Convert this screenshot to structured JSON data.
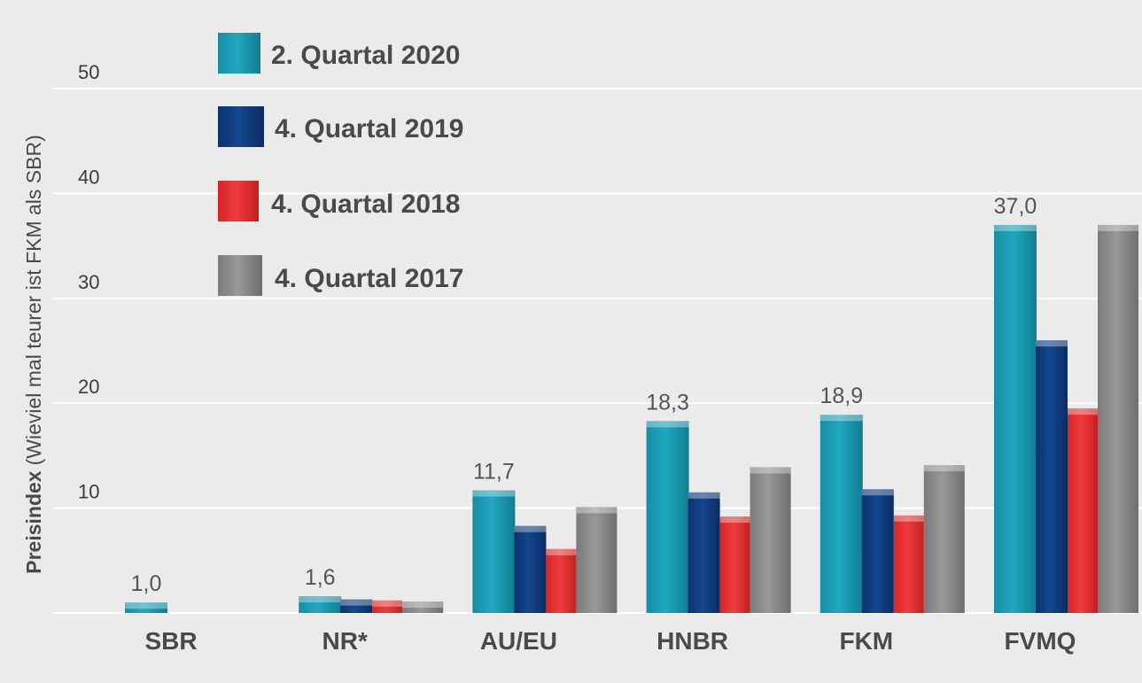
{
  "chart_data": {
    "type": "bar",
    "ylabel_bold": "Preisindex",
    "ylabel_rest": "(Wieviel mal teurer ist FKM als SBR)",
    "ylim": [
      0,
      50
    ],
    "yticks": [
      "10",
      "20",
      "30",
      "40",
      "50"
    ],
    "grid": true,
    "legend_position": "top-left",
    "categories": [
      "SBR",
      "NR*",
      "AU/EU",
      "HNBR",
      "FKM",
      "FVMQ"
    ],
    "series": [
      {
        "name": "2. Quartal 2020",
        "color": "#1a9db3",
        "values": [
          1.0,
          1.6,
          11.7,
          18.3,
          18.9,
          37.0
        ]
      },
      {
        "name": "4. Quartal 2019",
        "color": "#0e3d82",
        "values": [
          null,
          1.3,
          8.3,
          11.5,
          11.8,
          26.0
        ]
      },
      {
        "name": "4. Quartal 2018",
        "color": "#e83030",
        "values": [
          null,
          1.2,
          6.1,
          9.2,
          9.3,
          19.5
        ]
      },
      {
        "name": "4. Quartal 2017",
        "color": "#8a8a8a",
        "values": [
          null,
          1.1,
          10.1,
          13.9,
          14.1,
          37.0
        ]
      }
    ],
    "data_labels": [
      "1,0",
      "1,6",
      "11,7",
      "18,3",
      "18,9",
      "37,0"
    ]
  }
}
